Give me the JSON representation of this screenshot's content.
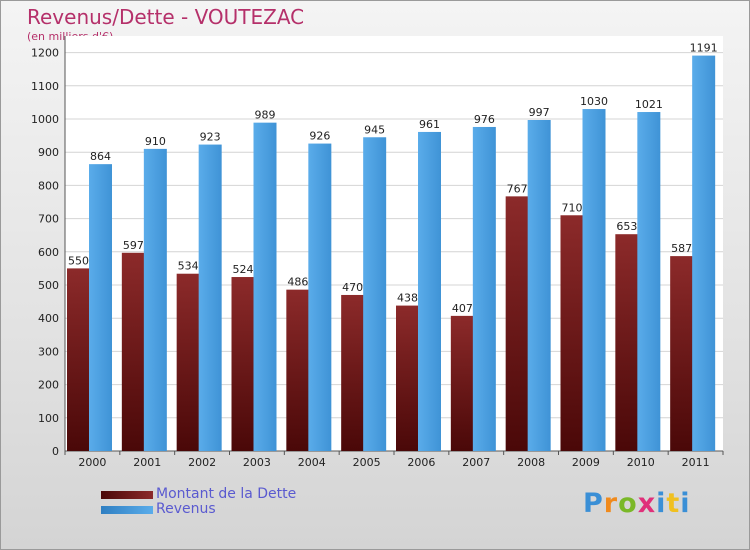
{
  "title": "Revenus/Dette - VOUTEZAC",
  "subtitle": "(en milliers d'€)",
  "logo": {
    "text": "Proxiti",
    "letter_colors": [
      "#3a8fd6",
      "#f08a1c",
      "#7ab828",
      "#e0307a",
      "#3a8fd6",
      "#f0c020"
    ]
  },
  "colors": {
    "dette": "#7a1f1f",
    "dette_dark": "#4a0808",
    "revenus": "#4da1e0",
    "revenus_dark": "#2f7fc2",
    "title": "#b5306a",
    "legend_text": "#5a5ad0"
  },
  "chart_data": {
    "type": "bar",
    "title": "Revenus/Dette - VOUTEZAC",
    "subtitle": "(en milliers d'€)",
    "categories": [
      "2000",
      "2001",
      "2002",
      "2003",
      "2004",
      "2005",
      "2006",
      "2007",
      "2008",
      "2009",
      "2010",
      "2011"
    ],
    "series": [
      {
        "name": "Montant de la Dette",
        "values": [
          550,
          597,
          534,
          524,
          486,
          470,
          438,
          407,
          767,
          710,
          653,
          587
        ]
      },
      {
        "name": "Revenus",
        "values": [
          864,
          910,
          923,
          989,
          926,
          945,
          961,
          976,
          997,
          1030,
          1021,
          1191
        ]
      }
    ],
    "yticks": [
      0,
      100,
      200,
      300,
      400,
      500,
      600,
      700,
      800,
      900,
      1000,
      1100,
      1200
    ],
    "ylim": [
      0,
      1250
    ],
    "grid": true,
    "legend_position": "bottom-left"
  }
}
